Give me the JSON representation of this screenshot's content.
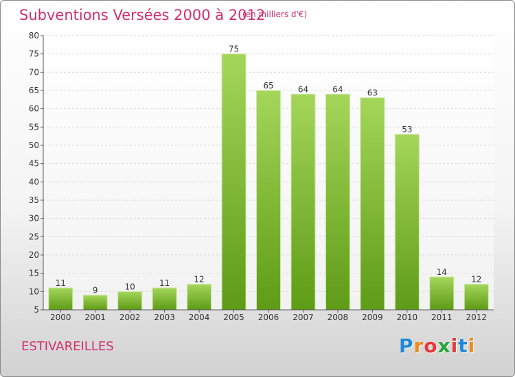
{
  "header": {
    "title": "Subventions Versées 2000 à 2012",
    "subtitle": "(en milliers d'€)"
  },
  "footer": {
    "commune": "ESTIVAREILLES",
    "logo_text": "Proxiti"
  },
  "colors": {
    "bar_light": "#a4d65a",
    "bar_dark": "#5e9b16",
    "title": "#d12f6b",
    "logo": [
      "#1e88d8",
      "#f08a1c",
      "#e23a3a",
      "#2aa53d",
      "#e23a3a",
      "#1e88d8",
      "#f08a1c"
    ]
  },
  "chart_data": {
    "type": "bar",
    "title": "Subventions Versées 2000 à 2012",
    "subtitle": "(en milliers d'€)",
    "categories": [
      "2000",
      "2001",
      "2002",
      "2003",
      "2004",
      "2005",
      "2006",
      "2007",
      "2008",
      "2009",
      "2010",
      "2011",
      "2012"
    ],
    "values": [
      11,
      9,
      10,
      11,
      12,
      75,
      65,
      64,
      64,
      63,
      53,
      14,
      12
    ],
    "ylim": [
      5,
      80
    ],
    "yticks": [
      5,
      10,
      15,
      20,
      25,
      30,
      35,
      40,
      45,
      50,
      55,
      60,
      65,
      70,
      75,
      80
    ],
    "grid": true,
    "data_labels": true
  }
}
